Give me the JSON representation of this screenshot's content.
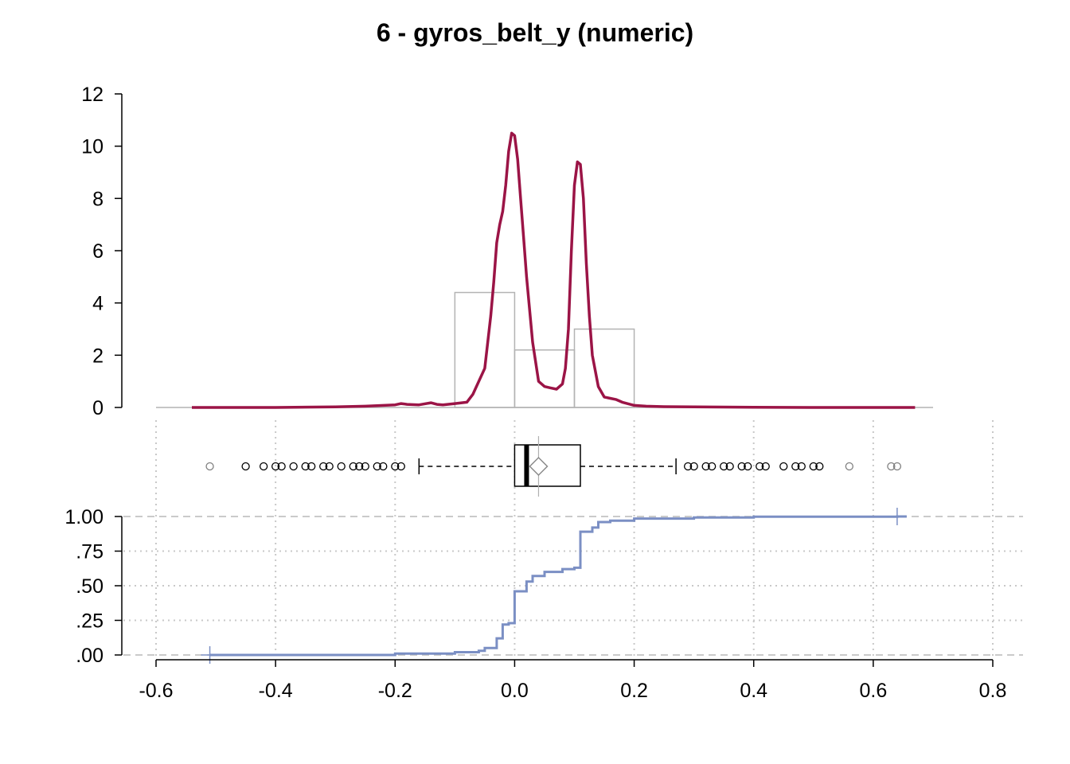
{
  "chart_data": {
    "title": "6 - gyros_belt_y (numeric)",
    "x_axis": {
      "range": [
        -0.6,
        0.8
      ],
      "ticks": [
        -0.6,
        -0.4,
        -0.2,
        0.0,
        0.2,
        0.4,
        0.6,
        0.8
      ],
      "tick_labels": [
        "-0.6",
        "-0.4",
        "-0.2",
        "0.0",
        "0.2",
        "0.4",
        "0.6",
        "0.8"
      ]
    },
    "panels": [
      {
        "type": "histogram+density",
        "y_axis": {
          "range": [
            0,
            12
          ],
          "ticks": [
            0,
            2,
            4,
            6,
            8,
            10,
            12
          ],
          "tick_labels": [
            "0",
            "2",
            "4",
            "6",
            "8",
            "10",
            "12"
          ]
        },
        "histogram": {
          "bins": [
            {
              "x0": -0.1,
              "x1": 0.0,
              "density": 4.4
            },
            {
              "x0": 0.0,
              "x1": 0.1,
              "density": 2.2
            },
            {
              "x0": 0.1,
              "x1": 0.2,
              "density": 3.0
            }
          ]
        },
        "density": {
          "x": [
            -0.54,
            -0.4,
            -0.3,
            -0.25,
            -0.2,
            -0.19,
            -0.18,
            -0.16,
            -0.14,
            -0.13,
            -0.12,
            -0.1,
            -0.08,
            -0.07,
            -0.06,
            -0.05,
            -0.04,
            -0.035,
            -0.03,
            -0.025,
            -0.02,
            -0.015,
            -0.01,
            -0.005,
            0.0,
            0.005,
            0.01,
            0.015,
            0.02,
            0.03,
            0.04,
            0.05,
            0.06,
            0.07,
            0.08,
            0.085,
            0.09,
            0.095,
            0.1,
            0.105,
            0.11,
            0.115,
            0.12,
            0.125,
            0.13,
            0.14,
            0.15,
            0.16,
            0.17,
            0.18,
            0.2,
            0.22,
            0.25,
            0.3,
            0.4,
            0.5,
            0.6,
            0.67
          ],
          "y": [
            0.0,
            0.0,
            0.02,
            0.05,
            0.1,
            0.15,
            0.12,
            0.1,
            0.18,
            0.12,
            0.1,
            0.15,
            0.2,
            0.5,
            1.0,
            1.5,
            3.5,
            4.8,
            6.3,
            7.0,
            7.5,
            8.5,
            9.8,
            10.5,
            10.4,
            9.5,
            8.0,
            6.5,
            5.0,
            2.5,
            1.0,
            0.8,
            0.75,
            0.7,
            0.9,
            1.5,
            3.0,
            6.0,
            8.5,
            9.4,
            9.3,
            8.0,
            5.5,
            3.5,
            2.0,
            0.8,
            0.4,
            0.35,
            0.3,
            0.2,
            0.08,
            0.05,
            0.03,
            0.02,
            0.01,
            0.0,
            0.0,
            0.0
          ]
        },
        "colors": {
          "density": "#9b1446",
          "histogram": "#b3b3b3"
        }
      },
      {
        "type": "boxplot",
        "min_whisker": -0.16,
        "q1": 0.0,
        "median": 0.02,
        "q3": 0.11,
        "max_whisker": 0.27,
        "mean": 0.04,
        "outliers": [
          -0.51,
          -0.45,
          -0.42,
          -0.4,
          -0.39,
          -0.37,
          -0.35,
          -0.34,
          -0.32,
          -0.31,
          -0.29,
          -0.27,
          -0.26,
          -0.25,
          -0.23,
          -0.22,
          -0.2,
          -0.19,
          0.29,
          0.3,
          0.32,
          0.33,
          0.35,
          0.36,
          0.38,
          0.39,
          0.41,
          0.42,
          0.45,
          0.47,
          0.48,
          0.5,
          0.51,
          0.56,
          0.63,
          0.64
        ]
      },
      {
        "type": "ecdf",
        "y_axis": {
          "range": [
            0,
            1
          ],
          "ticks": [
            0,
            0.25,
            0.5,
            0.75,
            1.0
          ],
          "tick_labels": [
            ".00",
            ".25",
            ".50",
            ".75",
            "1.00"
          ]
        },
        "steps": {
          "x": [
            -0.51,
            -0.2,
            -0.1,
            -0.06,
            -0.05,
            -0.03,
            -0.02,
            -0.01,
            0.0,
            0.02,
            0.03,
            0.05,
            0.08,
            0.1,
            0.11,
            0.13,
            0.14,
            0.16,
            0.2,
            0.3,
            0.4,
            0.64
          ],
          "y": [
            0.0,
            0.01,
            0.02,
            0.03,
            0.05,
            0.12,
            0.22,
            0.23,
            0.46,
            0.53,
            0.57,
            0.6,
            0.62,
            0.63,
            0.89,
            0.92,
            0.96,
            0.97,
            0.985,
            0.993,
            0.998,
            1.0
          ]
        },
        "color": "#7b8fc4"
      }
    ]
  }
}
